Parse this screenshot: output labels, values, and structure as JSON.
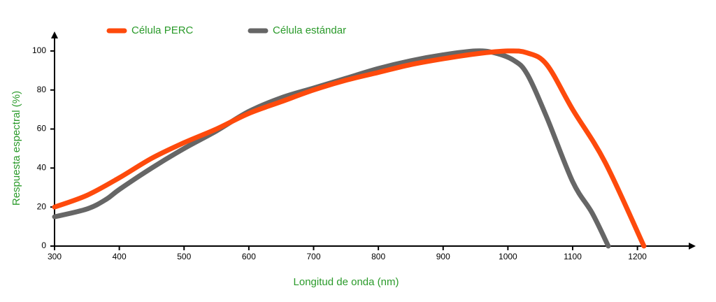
{
  "chart_data": {
    "type": "line",
    "x_label": "Longitud de onda (nm)",
    "y_label": "Respuesta espectral (%)",
    "xlim": [
      300,
      1290
    ],
    "ylim": [
      0,
      110
    ],
    "xticks": [
      300,
      400,
      500,
      600,
      700,
      800,
      900,
      1000,
      1100,
      1200
    ],
    "yticks": [
      0,
      20,
      40,
      60,
      80,
      100
    ],
    "series": [
      {
        "name": "Célula PERC",
        "color": "#fe4a0c",
        "x": [
          300,
          350,
          400,
          450,
          500,
          550,
          600,
          650,
          700,
          750,
          800,
          850,
          900,
          950,
          1000,
          1030,
          1060,
          1100,
          1150,
          1210
        ],
        "values": [
          20,
          26,
          35,
          45,
          53,
          60,
          68,
          74,
          80,
          85,
          89,
          93,
          96,
          98.5,
          100,
          99,
          93,
          70,
          43,
          0
        ]
      },
      {
        "name": "Célula estándar",
        "color": "#666666",
        "x": [
          300,
          350,
          380,
          400,
          450,
          500,
          550,
          600,
          650,
          700,
          750,
          800,
          850,
          900,
          950,
          980,
          1010,
          1030,
          1060,
          1100,
          1130,
          1155
        ],
        "values": [
          15,
          19,
          24,
          29,
          40,
          50,
          59,
          69,
          76,
          81,
          86,
          91,
          95,
          98,
          100,
          99,
          95,
          88,
          66,
          33,
          17,
          0
        ]
      }
    ]
  }
}
